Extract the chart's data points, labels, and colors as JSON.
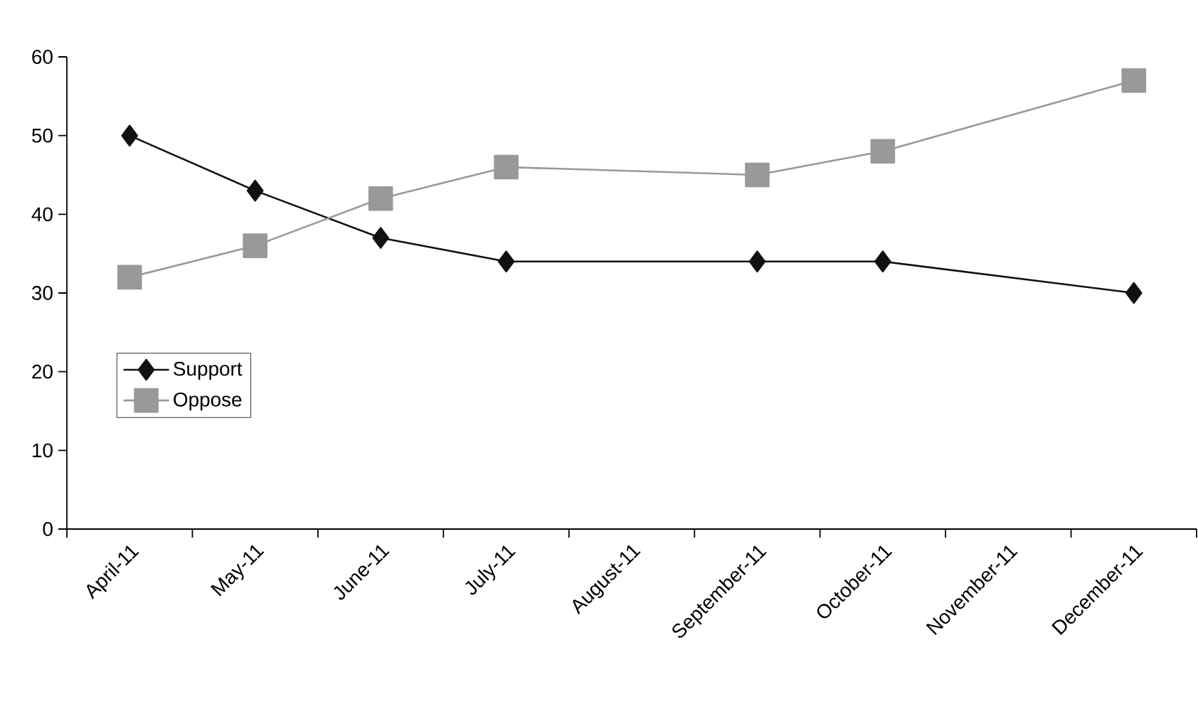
{
  "chart_data": {
    "type": "line",
    "categories": [
      "April-11",
      "May-11",
      "June-11",
      "July-11",
      "August-11",
      "September-11",
      "October-11",
      "November-11",
      "December-11"
    ],
    "series": [
      {
        "name": "Support",
        "color": "#111111",
        "marker": "diamond",
        "values": [
          50,
          43,
          37,
          34,
          null,
          34,
          34,
          null,
          30
        ]
      },
      {
        "name": "Oppose",
        "color": "#999999",
        "marker": "square",
        "values": [
          32,
          36,
          42,
          46,
          null,
          45,
          48,
          null,
          57
        ]
      }
    ],
    "ylim": [
      0,
      60
    ],
    "yticks": [
      0,
      10,
      20,
      30,
      40,
      50,
      60
    ],
    "grid": false,
    "legend": "bottom left",
    "line_style": "solid"
  }
}
